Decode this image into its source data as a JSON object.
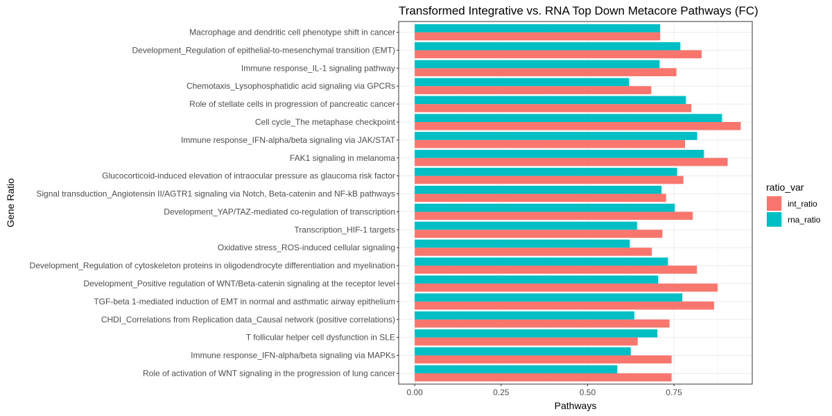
{
  "chart_data": {
    "type": "bar",
    "orientation": "horizontal",
    "title": "Transformed Integrative vs. RNA Top Down Metacore Pathways (FC)",
    "xlabel": "Pathways",
    "ylabel": "Gene Ratio",
    "xlim": [
      -0.0465,
      0.9765
    ],
    "x_ticks": [
      0.0,
      0.25,
      0.5,
      0.75
    ],
    "x_tick_labels": [
      "0.00",
      "0.25",
      "0.50",
      "0.75"
    ],
    "grid": true,
    "legend": {
      "title": "ratio_var",
      "placement": "right"
    },
    "categories": [
      "Macrophage and dendritic cell phenotype shift in cancer",
      "Development_Regulation of epithelial-to-mesenchymal transition (EMT)",
      "Immune response_IL-1 signaling pathway",
      "Chemotaxis_Lysophosphatidic acid signaling via GPCRs",
      "Role of stellate cells in progression of pancreatic cancer",
      "Cell cycle_The metaphase checkpoint",
      "Immune response_IFN-alpha/beta signaling via JAK/STAT",
      "FAK1 signaling in melanoma",
      "Glucocorticoid-induced elevation of intraocular pressure as glaucoma risk factor",
      "Signal transduction_Angiotensin II/AGTR1 signaling via Notch, Beta-catenin and NF-kB pathways",
      "Development_YAP/TAZ-mediated co-regulation of transcription",
      "Transcription_HIF-1 targets",
      "Oxidative stress_ROS-induced cellular signaling",
      "Development_Regulation of cytoskeleton proteins in oligodendrocyte differentiation and myelination",
      "Development_Positive regulation of WNT/Beta-catenin signaling at the receptor level",
      "TGF-beta 1-mediated induction of EMT in normal and asthmatic airway epithelium",
      "CHDI_Correlations from Replication data_Causal network (positive correlations)",
      "T follicular helper cell dysfunction in SLE",
      "Immune response_IFN-alpha/beta signaling via MAPKs",
      "Role of activation of WNT signaling in the progression of lung cancer"
    ],
    "series": [
      {
        "name": "int_ratio",
        "color": "#F8766D",
        "values": [
          0.71,
          0.83,
          0.757,
          0.684,
          0.8,
          0.943,
          0.782,
          0.905,
          0.777,
          0.727,
          0.804,
          0.716,
          0.686,
          0.816,
          0.876,
          0.866,
          0.737,
          0.645,
          0.743,
          0.743
        ]
      },
      {
        "name": "rna_ratio",
        "color": "#00BFC4",
        "values": [
          0.71,
          0.768,
          0.708,
          0.62,
          0.784,
          0.889,
          0.817,
          0.836,
          0.759,
          0.714,
          0.752,
          0.643,
          0.622,
          0.732,
          0.704,
          0.774,
          0.635,
          0.702,
          0.625,
          0.586
        ]
      }
    ]
  }
}
